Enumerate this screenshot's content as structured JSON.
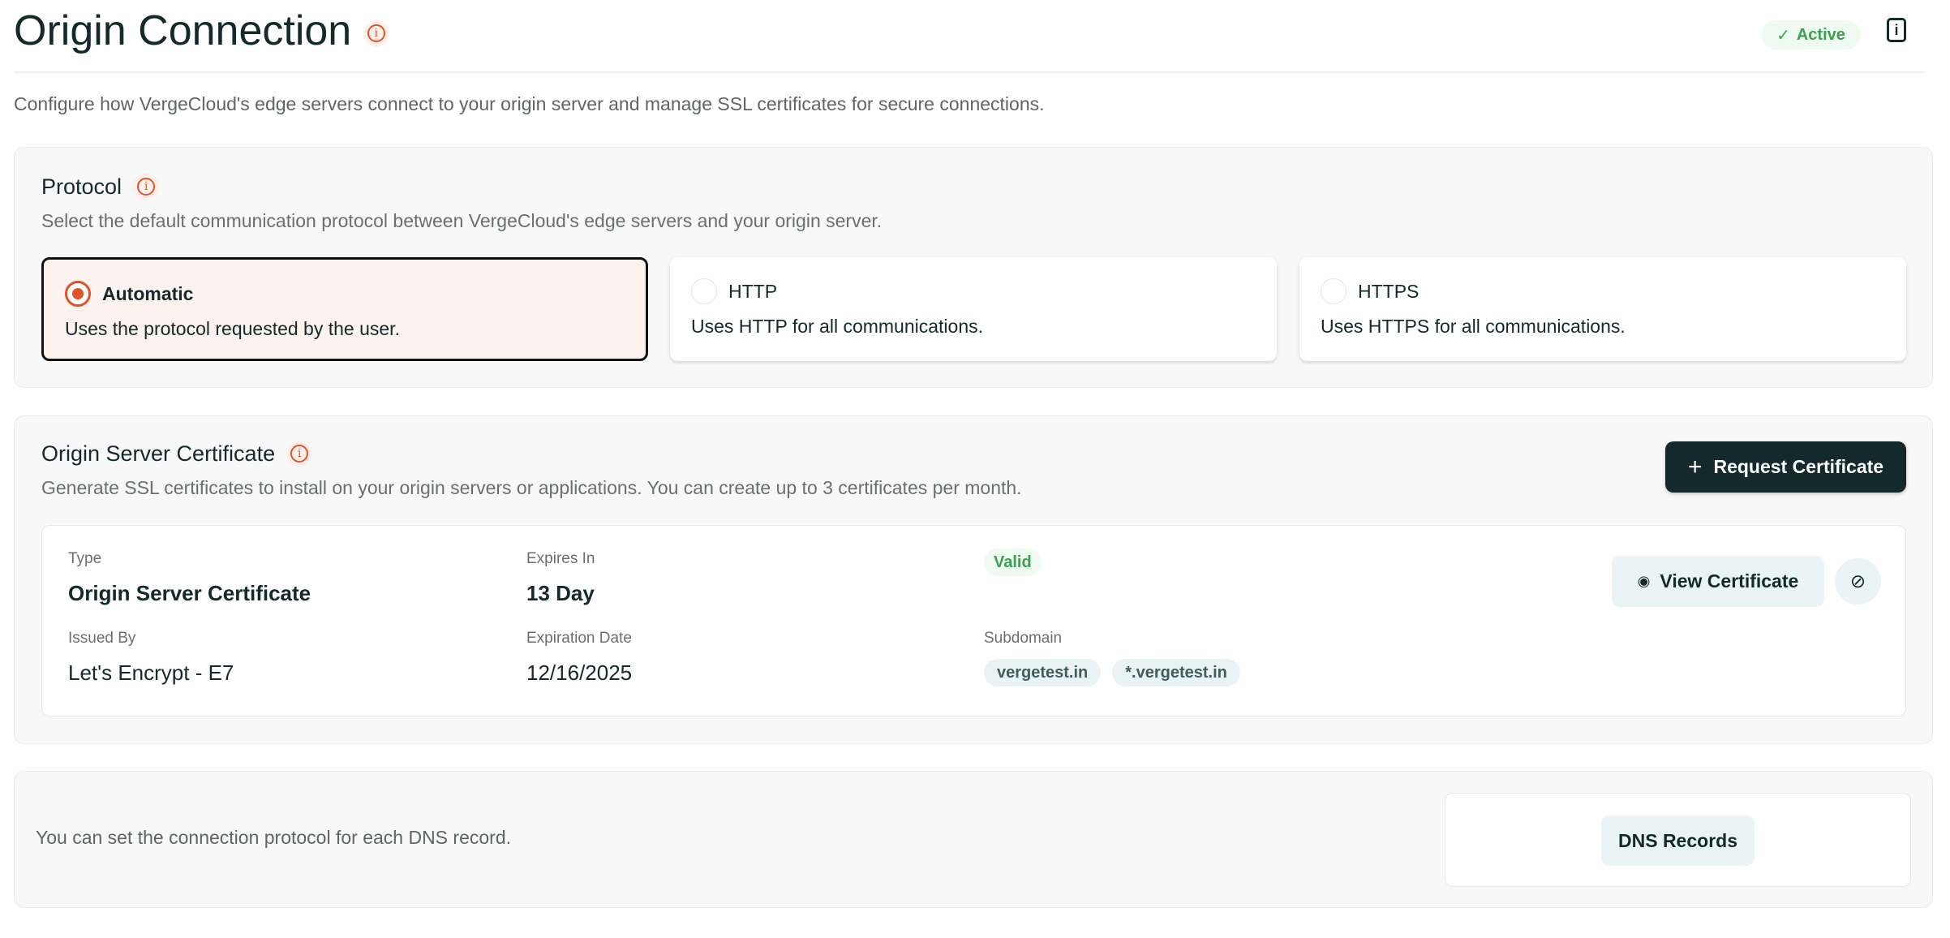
{
  "header": {
    "title": "Origin Connection",
    "status": "Active",
    "description": "Configure how VergeCloud's edge servers connect to your origin server and manage SSL certificates for secure connections."
  },
  "protocol": {
    "title": "Protocol",
    "subtitle": "Select the default communication protocol between VergeCloud's edge servers and your origin server.",
    "options": [
      {
        "label": "Automatic",
        "description": "Uses the protocol requested by the user.",
        "selected": true
      },
      {
        "label": "HTTP",
        "description": "Uses HTTP for all communications.",
        "selected": false
      },
      {
        "label": "HTTPS",
        "description": "Uses HTTPS for all communications.",
        "selected": false
      }
    ]
  },
  "certificate": {
    "title": "Origin Server Certificate",
    "subtitle": "Generate SSL certificates to install on your origin servers or applications. You can create up to 3 certificates per month.",
    "request_label": "Request Certificate",
    "item": {
      "type_label": "Type",
      "type": "Origin Server Certificate",
      "expires_label": "Expires In",
      "expires": "13 Day",
      "status": "Valid",
      "issued_label": "Issued By",
      "issued": "Let's Encrypt - E7",
      "date_label": "Expiration Date",
      "date": "12/16/2025",
      "subdomain_label": "Subdomain",
      "subdomains": [
        "vergetest.in",
        "*.vergetest.in"
      ],
      "view_label": "View Certificate"
    }
  },
  "dns": {
    "text": "You can set the connection protocol for each DNS record.",
    "button": "DNS Records"
  },
  "colors": {
    "accent": "#e0532a",
    "dark": "#13292b",
    "success": "#3aa14f"
  }
}
